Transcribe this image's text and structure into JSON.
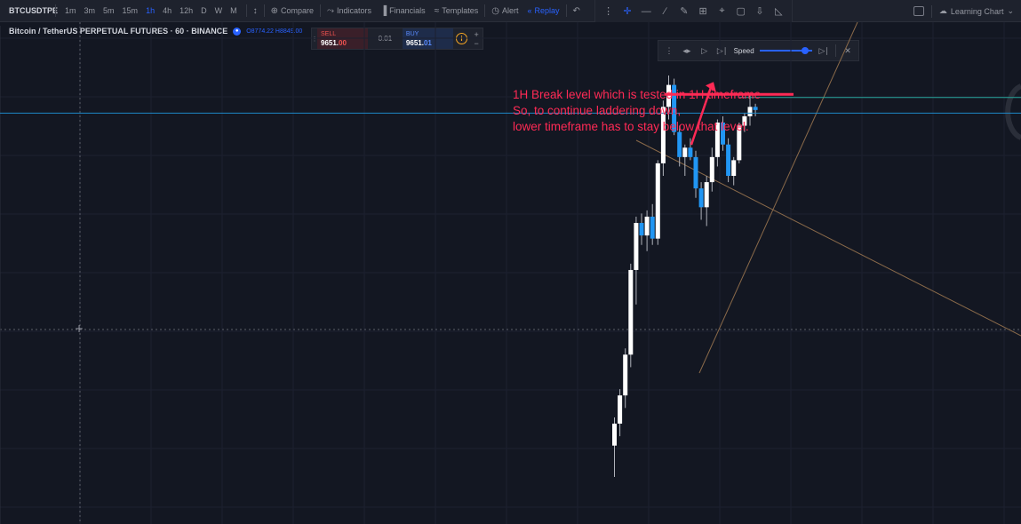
{
  "toolbar": {
    "symbol": "BTCUSDTPE",
    "timeframes": [
      "1m",
      "3m",
      "5m",
      "15m",
      "1h",
      "4h",
      "12h",
      "D",
      "W",
      "M"
    ],
    "active_timeframe": "1h",
    "compare_label": "Compare",
    "indicators_label": "Indicators",
    "financials_label": "Financials",
    "templates_label": "Templates",
    "alert_label": "Alert",
    "replay_label": "Replay",
    "learning_label": "Learning Chart"
  },
  "legend": {
    "title": "Bitcoin / TetherUS PERPETUAL FUTURES · 60 · BINANCE",
    "ohlc": "O8774.22  H8849.00"
  },
  "trade": {
    "sell_label": "SELL",
    "sell_price_main": "9651.",
    "sell_price_tail": "00",
    "quantity": "0.01",
    "buy_label": "BUY",
    "buy_price_main": "9651.",
    "buy_price_tail": "01"
  },
  "replay": {
    "speed_label": "Speed",
    "speed_level": 0.85
  },
  "annotation": {
    "line1": "1H Break level which is tested in 1H timeframe",
    "line2": "So, to continue laddering down,",
    "line3": "lower timeframe has to stay below that level."
  },
  "colors": {
    "background": "#131722",
    "bull_candle": "#ffffff",
    "bear_candle": "#2196f3",
    "annotation": "#ff2a55",
    "accent": "#2962ff"
  },
  "chart_data": {
    "type": "candlestick",
    "series": [
      {
        "o": 8700,
        "h": 8790,
        "l": 8600,
        "c": 8770
      },
      {
        "o": 8770,
        "h": 8880,
        "l": 8730,
        "c": 8860
      },
      {
        "o": 8860,
        "h": 9010,
        "l": 8820,
        "c": 8990
      },
      {
        "o": 8990,
        "h": 9280,
        "l": 8950,
        "c": 9260
      },
      {
        "o": 9260,
        "h": 9430,
        "l": 9150,
        "c": 9410
      },
      {
        "o": 9410,
        "h": 9440,
        "l": 9340,
        "c": 9370
      },
      {
        "o": 9370,
        "h": 9450,
        "l": 9320,
        "c": 9430
      },
      {
        "o": 9430,
        "h": 9470,
        "l": 9340,
        "c": 9360
      },
      {
        "o": 9360,
        "h": 9610,
        "l": 9340,
        "c": 9600
      },
      {
        "o": 9600,
        "h": 9800,
        "l": 9560,
        "c": 9780
      },
      {
        "o": 9780,
        "h": 9880,
        "l": 9740,
        "c": 9850
      },
      {
        "o": 9850,
        "h": 9870,
        "l": 9690,
        "c": 9700
      },
      {
        "o": 9700,
        "h": 9720,
        "l": 9590,
        "c": 9620
      },
      {
        "o": 9620,
        "h": 9660,
        "l": 9560,
        "c": 9650
      },
      {
        "o": 9650,
        "h": 9680,
        "l": 9610,
        "c": 9620
      },
      {
        "o": 9620,
        "h": 9640,
        "l": 9490,
        "c": 9520
      },
      {
        "o": 9520,
        "h": 9540,
        "l": 9420,
        "c": 9460
      },
      {
        "o": 9460,
        "h": 9560,
        "l": 9400,
        "c": 9540
      },
      {
        "o": 9540,
        "h": 9650,
        "l": 9510,
        "c": 9620
      },
      {
        "o": 9620,
        "h": 9740,
        "l": 9590,
        "c": 9730
      },
      {
        "o": 9730,
        "h": 9750,
        "l": 9640,
        "c": 9660
      },
      {
        "o": 9660,
        "h": 9680,
        "l": 9540,
        "c": 9560
      },
      {
        "o": 9560,
        "h": 9620,
        "l": 9530,
        "c": 9610
      },
      {
        "o": 9610,
        "h": 9730,
        "l": 9600,
        "c": 9720
      },
      {
        "o": 9720,
        "h": 9760,
        "l": 9700,
        "c": 9750
      },
      {
        "o": 9750,
        "h": 9820,
        "l": 9720,
        "c": 9780
      },
      {
        "o": 9780,
        "h": 9790,
        "l": 9750,
        "c": 9770
      }
    ],
    "horizontal_levels": [
      {
        "price": 9820,
        "color": "#ff2a55",
        "role": "break-level"
      },
      {
        "price": 9810,
        "color": "#26a69a",
        "role": "level"
      },
      {
        "price": 9760,
        "color": "#1e88c8",
        "role": "level"
      }
    ],
    "ylim": [
      8450,
      10050
    ]
  }
}
